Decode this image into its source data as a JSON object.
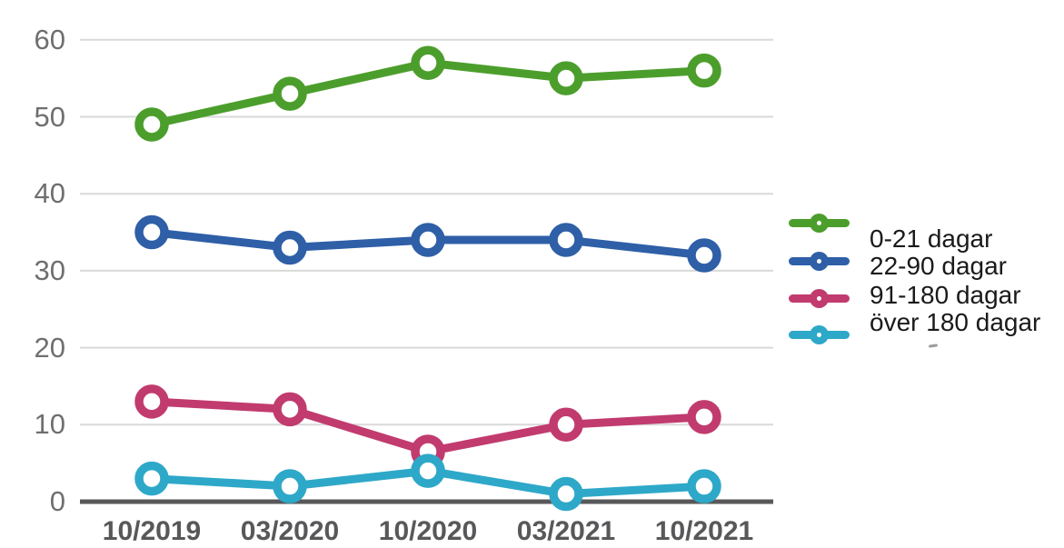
{
  "chart_data": {
    "type": "line",
    "title": "",
    "xlabel": "",
    "ylabel": "",
    "categories": [
      "10/2019",
      "03/2020",
      "10/2020",
      "03/2021",
      "10/2021"
    ],
    "series": [
      {
        "name": "0-21 dagar",
        "color": "#4c9e2c",
        "values": [
          49,
          53,
          57,
          55,
          56
        ]
      },
      {
        "name": "22-90 dagar",
        "color": "#2e5fa7",
        "values": [
          35,
          33,
          34,
          34,
          32
        ]
      },
      {
        "name": "91-180 dagar",
        "color": "#c13b6f",
        "values": [
          13,
          12,
          6.5,
          10,
          11
        ]
      },
      {
        "name": "över 180 dagar",
        "color": "#2ea8c8",
        "values": [
          3,
          2,
          4,
          1,
          2
        ]
      }
    ],
    "ylim": [
      0,
      60
    ],
    "y_ticks": [
      0,
      10,
      20,
      30,
      40,
      50,
      60
    ],
    "grid": true,
    "legend_position": "right",
    "marker_style": "open-circle",
    "colors": {
      "background": "#ffffff",
      "gridline": "#d9d9d9",
      "axis_line": "#58585a",
      "y_tick_text": "#6f6f6f",
      "x_tick_text": "#58585a",
      "legend_text": "#1a1a1a"
    }
  }
}
